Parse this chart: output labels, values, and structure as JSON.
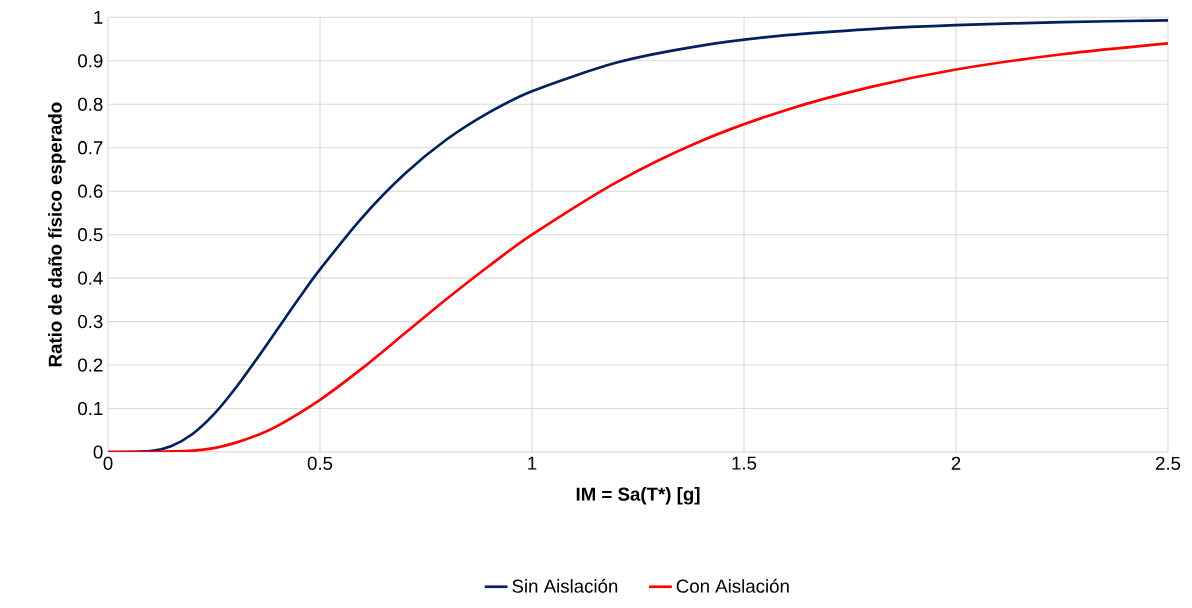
{
  "chart_data": {
    "type": "line",
    "xlabel": "IM = Sa(T*) [g]",
    "ylabel": "Ratio de daño físico esperado",
    "series": [
      {
        "name": "Sin Aislación",
        "color": "#002060",
        "x": [
          0,
          0.1,
          0.15,
          0.2,
          0.25,
          0.3,
          0.35,
          0.4,
          0.45,
          0.5,
          0.6,
          0.7,
          0.8,
          0.9,
          1.0,
          1.2,
          1.4,
          1.6,
          1.8,
          2.0,
          2.25,
          2.5
        ],
        "values": [
          0,
          0.002,
          0.014,
          0.042,
          0.087,
          0.146,
          0.213,
          0.283,
          0.353,
          0.42,
          0.54,
          0.64,
          0.72,
          0.782,
          0.83,
          0.896,
          0.935,
          0.959,
          0.973,
          0.982,
          0.989,
          0.993
        ]
      },
      {
        "name": "Con Aislación",
        "color": "#ff0000",
        "x": [
          0,
          0.1,
          0.2,
          0.25,
          0.3,
          0.35,
          0.4,
          0.5,
          0.6,
          0.7,
          0.8,
          0.9,
          1.0,
          1.2,
          1.4,
          1.6,
          1.8,
          2.0,
          2.25,
          2.5
        ],
        "values": [
          0,
          0,
          0.003,
          0.009,
          0.021,
          0.038,
          0.06,
          0.12,
          0.193,
          0.273,
          0.353,
          0.429,
          0.5,
          0.621,
          0.716,
          0.787,
          0.84,
          0.88,
          0.915,
          0.94
        ]
      }
    ],
    "xlim": [
      0,
      2.5
    ],
    "ylim": [
      0,
      1
    ],
    "xticks": [
      0,
      0.5,
      1,
      1.5,
      2,
      2.5
    ],
    "yticks": [
      0,
      0.1,
      0.2,
      0.3,
      0.4,
      0.5,
      0.6,
      0.7,
      0.8,
      0.9,
      1
    ],
    "grid": true,
    "legend": "bottom",
    "line_style": "solid"
  }
}
